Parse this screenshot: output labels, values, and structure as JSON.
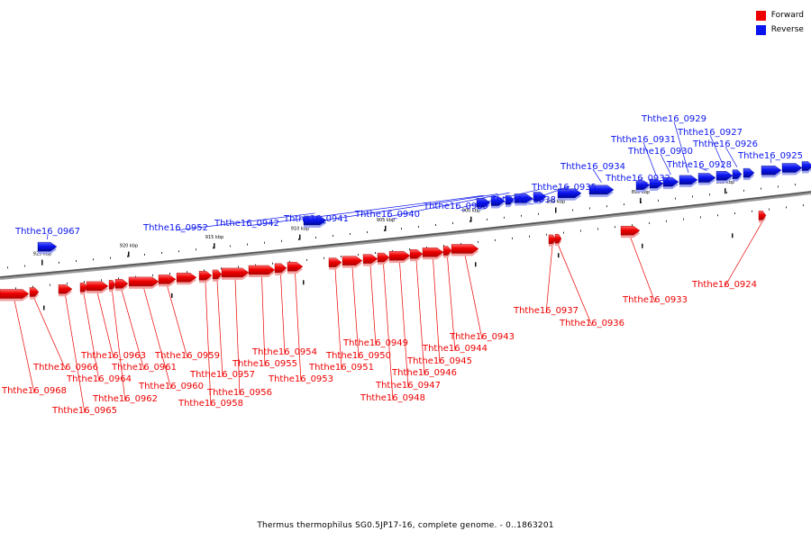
{
  "legend": {
    "forward_label": "Forward",
    "reverse_label": "Reverse",
    "forward_color": "#ee0000",
    "reverse_color": "#0a14ee"
  },
  "caption": "Thermus thermophilus SG0.5JP17-16, complete genome. - 0..1863201",
  "kbp_ticks": [
    "925 kbp",
    "920 kbp",
    "915 kbp",
    "910 kbp",
    "905 kbp",
    "900 kbp",
    "895 kbp",
    "890 kbp",
    "885 kbp"
  ],
  "reverse_genes": [
    "Ththe16_0967",
    "Ththe16_0952",
    "Ththe16_0942",
    "Ththe16_0941",
    "Ththe16_0940",
    "Ththe16_0939",
    "Ththe16_0938",
    "Ththe16_0935",
    "Ththe16_0934",
    "Ththe16_0932",
    "Ththe16_0931",
    "Ththe16_0930",
    "Ththe16_0929",
    "Ththe16_0928",
    "Ththe16_0927",
    "Ththe16_0926",
    "Ththe16_0925"
  ],
  "forward_genes": [
    "Ththe16_0968",
    "Ththe16_0966",
    "Ththe16_0965",
    "Ththe16_0964",
    "Ththe16_0963",
    "Ththe16_0962",
    "Ththe16_0961",
    "Ththe16_0960",
    "Ththe16_0959",
    "Ththe16_0958",
    "Ththe16_0957",
    "Ththe16_0956",
    "Ththe16_0955",
    "Ththe16_0954",
    "Ththe16_0953",
    "Ththe16_0951",
    "Ththe16_0950",
    "Ththe16_0949",
    "Ththe16_0948",
    "Ththe16_0947",
    "Ththe16_0946",
    "Ththe16_0945",
    "Ththe16_0944",
    "Ththe16_0943",
    "Ththe16_0937",
    "Ththe16_0936",
    "Ththe16_0933",
    "Ththe16_0924"
  ]
}
